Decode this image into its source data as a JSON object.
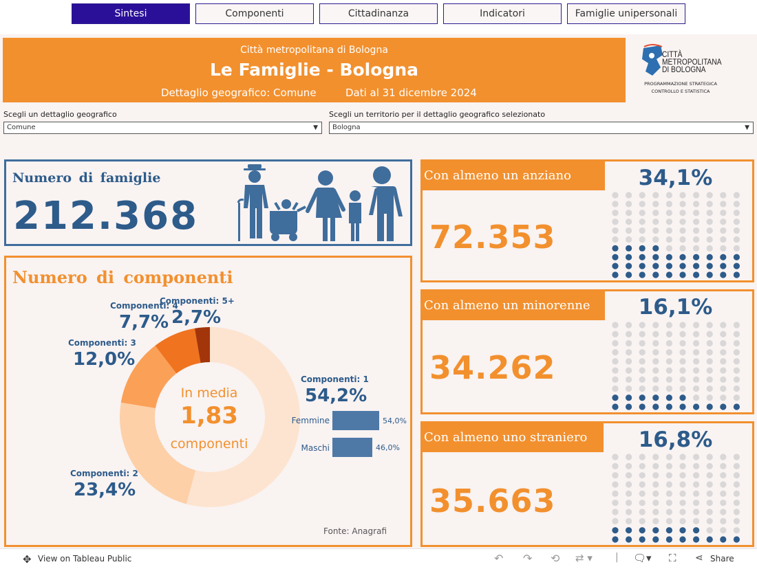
{
  "tabs": [
    "Sintesi",
    "Componenti",
    "Cittadinanza",
    "Indicatori",
    "Famiglie unipersonali"
  ],
  "header": {
    "org": "Città metropolitana di Bologna",
    "title": "Le Famiglie - Bologna",
    "detail": "Dettaglio geografico: Comune",
    "date": "Dati al 31 dicembre 2024"
  },
  "logo": {
    "line1": "CITTÀ",
    "line2": "METROPOLITANA",
    "line3": "DI BOLOGNA",
    "sub1": "PROGRAMMAZIONE STRATEGICA",
    "sub2": "CONTROLLO E STATISTICA"
  },
  "filters": {
    "geo_label": "Scegli un dettaglio geografico",
    "geo_value": "Comune",
    "terr_label": "Scegli un territorio per il dettaglio geografico selezionato",
    "terr_value": "Bologna"
  },
  "families": {
    "label": "Numero di famiglie",
    "value": "212.368"
  },
  "components": {
    "title": "Numero di componenti",
    "center_top": "In media",
    "center_value": "1,83",
    "center_bottom": "componenti",
    "source": "Fonte: Anagrafi",
    "slices": [
      {
        "label": "Componenti: 1",
        "pct": "54,2%",
        "value": 54.2,
        "color": "#fde4d0"
      },
      {
        "label": "Componenti: 2",
        "pct": "23,4%",
        "value": 23.4,
        "color": "#fdd0a8"
      },
      {
        "label": "Componenti: 3",
        "pct": "12,0%",
        "value": 12.0,
        "color": "#fba057"
      },
      {
        "label": "Componenti: 4",
        "pct": "7,7%",
        "value": 7.7,
        "color": "#f0731f"
      },
      {
        "label": "Componenti: 5+",
        "pct": "2,7%",
        "value": 2.7,
        "color": "#a3350a"
      }
    ],
    "gender": [
      {
        "label": "Femmine",
        "pct": "54,0%",
        "value": 54.0
      },
      {
        "label": "Maschi",
        "pct": "46,0%",
        "value": 46.0
      }
    ]
  },
  "indicators": [
    {
      "title": "Con almeno un anziano",
      "value": "72.353",
      "pct": "34,1%",
      "filled": 34
    },
    {
      "title": "Con almeno un minorenne",
      "value": "34.262",
      "pct": "16,1%",
      "filled": 16
    },
    {
      "title": "Con almeno uno straniero",
      "value": "35.663",
      "pct": "16,8%",
      "filled": 17
    }
  ],
  "colors": {
    "orange": "#f2902e",
    "navy": "#2d5b8a",
    "dot_empty": "#d9d7d7",
    "accent": "#2a1099"
  },
  "footer": {
    "view_label": "View on Tableau Public",
    "share_label": "Share"
  }
}
